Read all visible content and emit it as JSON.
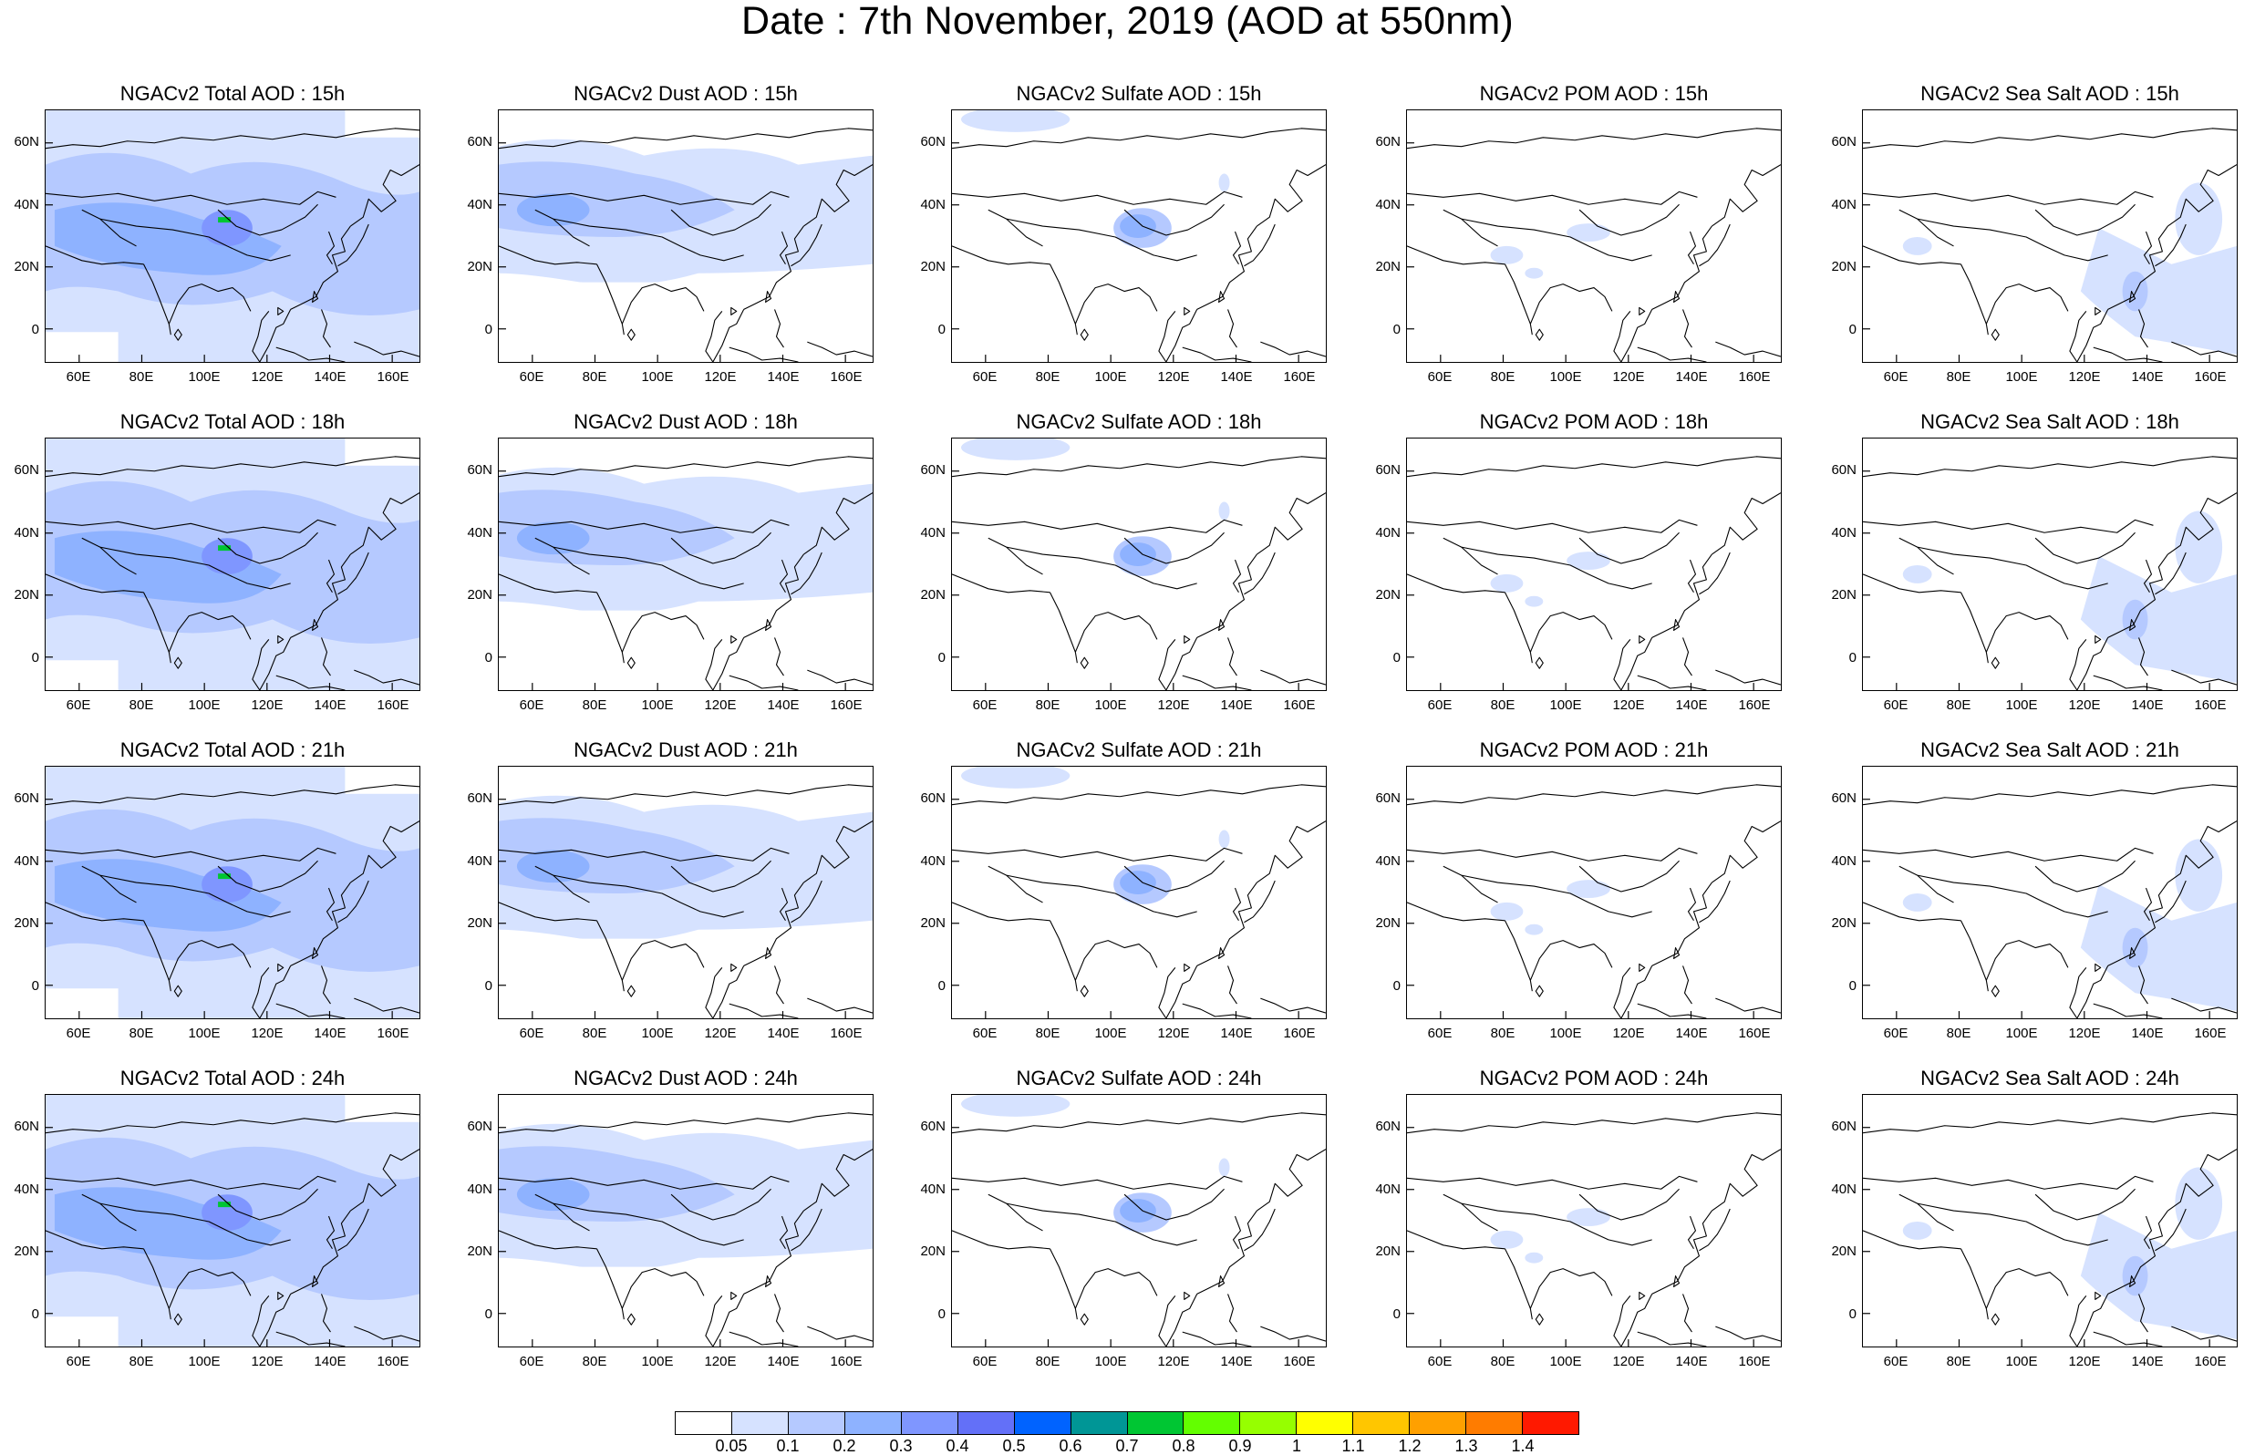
{
  "title": "Date : 7th November, 2019 (AOD at 550nm)",
  "x_ticks": [
    "60E",
    "80E",
    "100E",
    "120E",
    "140E",
    "160E"
  ],
  "y_ticks": [
    "60N",
    "40N",
    "20N",
    "0"
  ],
  "panels": [
    {
      "title": "NGACv2 Total AOD : 15h",
      "species": "total"
    },
    {
      "title": "NGACv2 Dust AOD : 15h",
      "species": "dust"
    },
    {
      "title": "NGACv2 Sulfate AOD : 15h",
      "species": "sulfate"
    },
    {
      "title": "NGACv2 POM AOD : 15h",
      "species": "pom"
    },
    {
      "title": "NGACv2 Sea Salt AOD : 15h",
      "species": "seasalt"
    },
    {
      "title": "NGACv2 Total AOD : 18h",
      "species": "total"
    },
    {
      "title": "NGACv2 Dust AOD : 18h",
      "species": "dust"
    },
    {
      "title": "NGACv2 Sulfate AOD : 18h",
      "species": "sulfate"
    },
    {
      "title": "NGACv2 POM AOD : 18h",
      "species": "pom"
    },
    {
      "title": "NGACv2 Sea Salt AOD : 18h",
      "species": "seasalt"
    },
    {
      "title": "NGACv2 Total AOD : 21h",
      "species": "total"
    },
    {
      "title": "NGACv2 Dust AOD : 21h",
      "species": "dust"
    },
    {
      "title": "NGACv2 Sulfate AOD : 21h",
      "species": "sulfate"
    },
    {
      "title": "NGACv2 POM AOD : 21h",
      "species": "pom"
    },
    {
      "title": "NGACv2 Sea Salt AOD : 21h",
      "species": "seasalt"
    },
    {
      "title": "NGACv2 Total AOD : 24h",
      "species": "total"
    },
    {
      "title": "NGACv2 Dust AOD : 24h",
      "species": "dust"
    },
    {
      "title": "NGACv2 Sulfate AOD : 24h",
      "species": "sulfate"
    },
    {
      "title": "NGACv2 POM AOD : 24h",
      "species": "pom"
    },
    {
      "title": "NGACv2 Sea Salt  AOD : 24h",
      "species": "seasalt"
    }
  ],
  "colorbar": {
    "labels": [
      "0.05",
      "0.1",
      "0.2",
      "0.3",
      "0.4",
      "0.5",
      "0.6",
      "0.7",
      "0.8",
      "0.9",
      "1",
      "1.1",
      "1.2",
      "1.3",
      "1.4"
    ],
    "colors": [
      "#ffffff",
      "#d6e2ff",
      "#b5c9ff",
      "#8eb2ff",
      "#7f96ff",
      "#6370f8",
      "#0063ff",
      "#009696",
      "#00c633",
      "#63ff00",
      "#96ff00",
      "#ffff00",
      "#ffc600",
      "#ffa000",
      "#ff7c00",
      "#ff1900"
    ]
  }
}
